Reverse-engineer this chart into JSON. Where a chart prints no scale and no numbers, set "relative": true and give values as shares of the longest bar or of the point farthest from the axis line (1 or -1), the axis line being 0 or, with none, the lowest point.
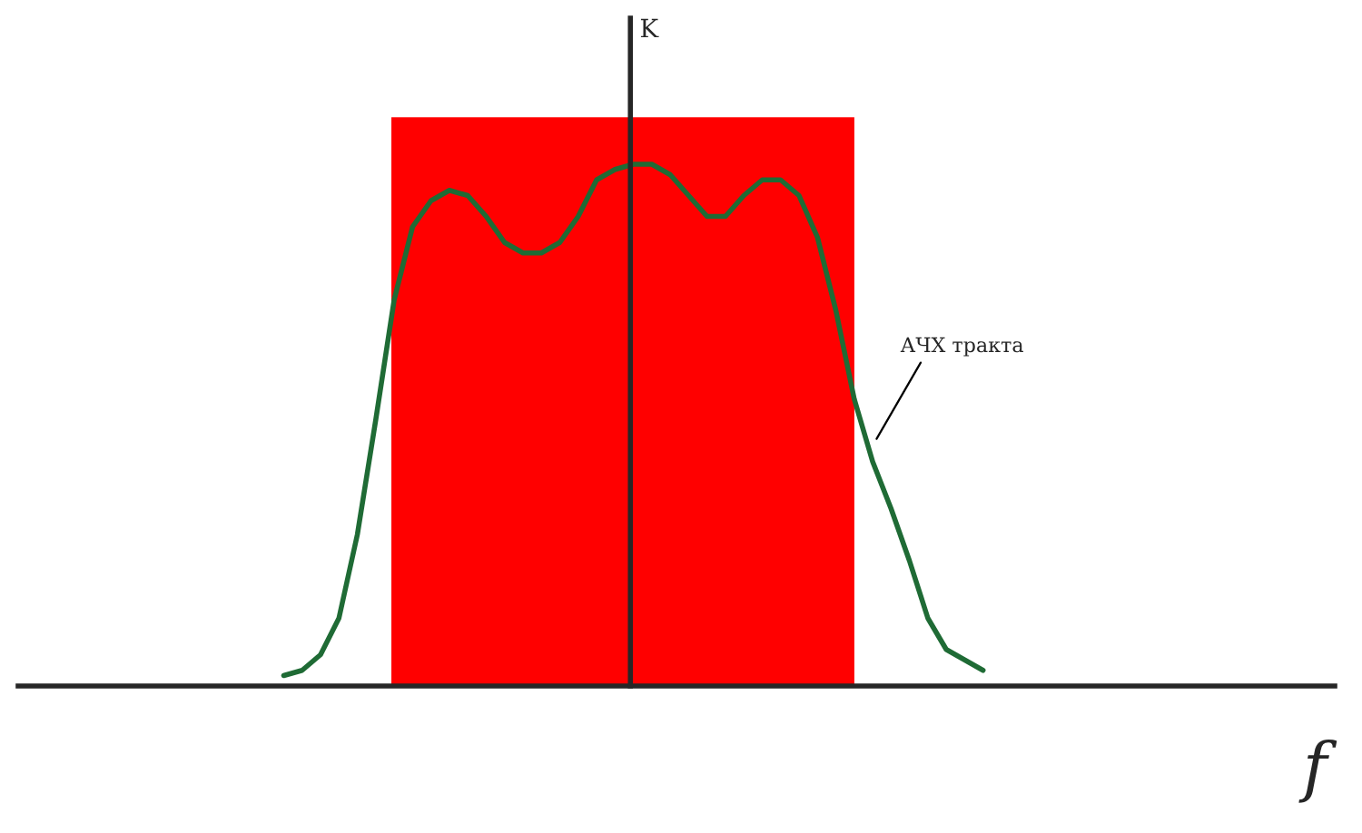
{
  "chart_data": {
    "type": "line",
    "relative": true,
    "categories": [
      null,
      null,
      null,
      null,
      null,
      null,
      null,
      null,
      null,
      null,
      null,
      null,
      null,
      null,
      null,
      null,
      null,
      null,
      null,
      null,
      null,
      null,
      null,
      null,
      null,
      null,
      null,
      null,
      null,
      null,
      null,
      null,
      null,
      null,
      null,
      null,
      null,
      null,
      null
    ],
    "series": [
      {
        "color": "#1f6b35",
        "values": [
          0.02,
          0.03,
          0.06,
          0.13,
          0.29,
          0.51,
          0.74,
          0.88,
          0.93,
          0.95,
          0.94,
          0.9,
          0.85,
          0.83,
          0.83,
          0.85,
          0.9,
          0.97,
          0.99,
          1,
          1,
          0.98,
          0.94,
          0.9,
          0.9,
          0.94,
          0.97,
          0.97,
          0.94,
          0.86,
          0.72,
          0.55,
          0.43,
          0.34,
          0.24,
          0.13,
          0.07,
          0.05,
          0.03
        ]
      }
    ],
    "annotations": [
      "K",
      "f",
      "АЧХ тракта"
    ]
  }
}
